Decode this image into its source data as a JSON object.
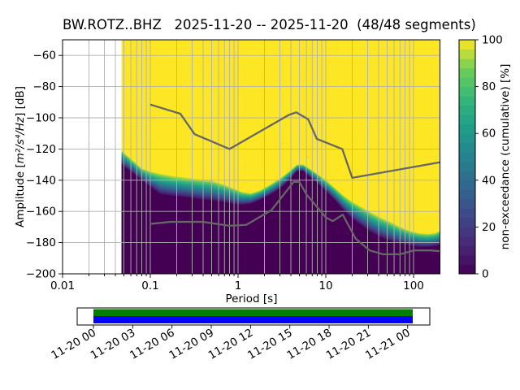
{
  "title": "BW.ROTZ..BHZ   2025-11-20 -- 2025-11-20  (48/48 segments)",
  "chart_data": {
    "type": "heatmap",
    "description": "PPSD probabilistic power spectral density, cumulative (non-exceedance) view, with Peterson NHNM/NLNM reference noise model curves",
    "title": "BW.ROTZ..BHZ   2025-11-20 -- 2025-11-20  (48/48 segments)",
    "xlabel": "Period [s]",
    "ylabel": "Amplitude [m²/s⁴/Hz] [dB]",
    "ylabel_prefix": "Amplitude [",
    "ylabel_math": "m²/s⁴/Hz",
    "ylabel_suffix": "] [dB]",
    "x_scale": "log",
    "xlim": [
      0.01,
      200
    ],
    "ylim": [
      -200,
      -50
    ],
    "xticks": [
      0.01,
      0.1,
      1,
      10,
      100
    ],
    "xtick_labels": [
      "0.01",
      "0.1",
      "1",
      "10",
      "100"
    ],
    "yticks": [
      -60,
      -80,
      -100,
      -120,
      -140,
      -160,
      -180,
      -200
    ],
    "grid": true,
    "data_min_period_s": 0.047,
    "colorbar": {
      "label": "non-exceedance (cumulative) [%]",
      "ticks": [
        0,
        20,
        40,
        60,
        80,
        100
      ],
      "vmin": 0,
      "vmax": 100,
      "colormap": "viridis",
      "steps": 25
    },
    "cumulative_distribution": {
      "comment": "db_low = level where non-exceedance leaves 0% (dark), db_high = level where it reaches 100% (yellow)",
      "periods_s": [
        0.047,
        0.055,
        0.065,
        0.08,
        0.1,
        0.13,
        0.18,
        0.25,
        0.35,
        0.5,
        0.7,
        0.9,
        1.1,
        1.4,
        1.8,
        2.3,
        3.0,
        3.8,
        4.7,
        5.5,
        6.5,
        8,
        10,
        13,
        16,
        20,
        25,
        32,
        42,
        55,
        70,
        90,
        115,
        145,
        175,
        200
      ],
      "db_high": [
        -121,
        -124.5,
        -128,
        -132.5,
        -134.5,
        -136,
        -137.5,
        -138.5,
        -139.5,
        -140.5,
        -143,
        -145.5,
        -147.5,
        -148.5,
        -146.5,
        -143,
        -139,
        -134.5,
        -130,
        -130,
        -132.5,
        -136,
        -140,
        -145.5,
        -150,
        -154,
        -157,
        -160.5,
        -164,
        -167,
        -170,
        -172.5,
        -174,
        -174.5,
        -174,
        -172.5
      ],
      "db_low": [
        -131,
        -133.5,
        -136.5,
        -141,
        -145,
        -150,
        -151,
        -152,
        -153,
        -154,
        -155,
        -156,
        -156.5,
        -155.5,
        -153,
        -150,
        -146,
        -140.5,
        -134.5,
        -134.5,
        -138,
        -142.5,
        -147.5,
        -154,
        -160,
        -165.5,
        -169.5,
        -174,
        -177.5,
        -180,
        -181.5,
        -182.5,
        -183.5,
        -183.5,
        -183,
        -182.5
      ]
    },
    "noise_models": {
      "color": "#666666",
      "nhnm": [
        [
          0.1,
          -91.5
        ],
        [
          0.22,
          -97.4
        ],
        [
          0.32,
          -110.5
        ],
        [
          0.8,
          -120.0
        ],
        [
          3.8,
          -98.1
        ],
        [
          4.6,
          -96.5
        ],
        [
          6.3,
          -101.0
        ],
        [
          7.9,
          -113.5
        ],
        [
          15.4,
          -120.0
        ],
        [
          20.0,
          -138.5
        ],
        [
          200,
          -128.5
        ]
      ],
      "nlnm": [
        [
          0.1,
          -168.0
        ],
        [
          0.17,
          -166.7
        ],
        [
          0.4,
          -166.7
        ],
        [
          0.8,
          -169.2
        ],
        [
          1.24,
          -168.6
        ],
        [
          2.4,
          -159.2
        ],
        [
          4.3,
          -141.1
        ],
        [
          5.0,
          -141.1
        ],
        [
          6.0,
          -149.0
        ],
        [
          10.0,
          -163.8
        ],
        [
          12.0,
          -166.2
        ],
        [
          15.6,
          -162.1
        ],
        [
          21.9,
          -177.5
        ],
        [
          31.6,
          -185.0
        ],
        [
          45.0,
          -187.5
        ],
        [
          70.0,
          -187.5
        ],
        [
          101.0,
          -185.0
        ],
        [
          154.0,
          -185.0
        ],
        [
          200,
          -185.5
        ]
      ]
    }
  },
  "coverage": {
    "tick_labels": [
      "11-20 00",
      "11-20 03",
      "11-20 06",
      "11-20 09",
      "11-20 12",
      "11-20 15",
      "11-20 18",
      "11-20 21",
      "11-21 00"
    ],
    "bar_colors": {
      "histogram_stack": "#008000",
      "data_available": "#0000ff"
    }
  },
  "colors": {
    "background": "#ffffff",
    "grid": "#b0b0b0",
    "spine": "#000000",
    "noise_models": "#666666",
    "hist_min": "#440154",
    "hist_max": "#fde725",
    "viridis_stops": [
      [
        0.0,
        "#440154"
      ],
      [
        0.125,
        "#482878"
      ],
      [
        0.25,
        "#3e4989"
      ],
      [
        0.375,
        "#31688e"
      ],
      [
        0.5,
        "#26828e"
      ],
      [
        0.625,
        "#1f9e89"
      ],
      [
        0.75,
        "#35b779"
      ],
      [
        0.875,
        "#6ece58"
      ],
      [
        1.0,
        "#fde725"
      ]
    ]
  }
}
